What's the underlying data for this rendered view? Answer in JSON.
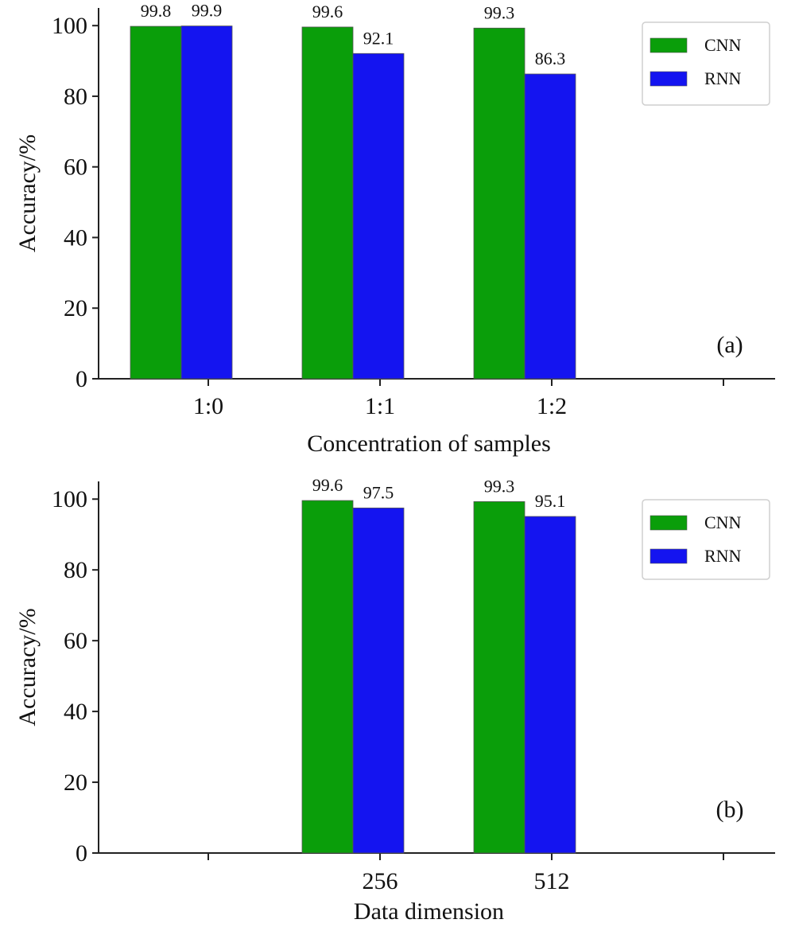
{
  "chart_data": [
    {
      "type": "bar",
      "panel_label": "(a)",
      "xlabel": "Concentration of samples",
      "ylabel": "Accuracy/%",
      "categories": [
        "1:0",
        "1:1",
        "1:2"
      ],
      "ylim": [
        0,
        105
      ],
      "yticks": [
        0,
        20,
        40,
        60,
        80,
        100
      ],
      "extra_x_ticks": 1,
      "series": [
        {
          "name": "CNN",
          "color": "#0a9e0a",
          "values": [
            99.8,
            99.6,
            99.3
          ],
          "labels": [
            "99.8",
            "99.6",
            "99.3"
          ]
        },
        {
          "name": "RNN",
          "color": "#1414f0",
          "values": [
            99.9,
            92.1,
            86.3
          ],
          "labels": [
            "99.9",
            "92.1",
            "86.3"
          ]
        }
      ],
      "legend_position": "top-right",
      "grid": false
    },
    {
      "type": "bar",
      "panel_label": "(b)",
      "xlabel": "Data dimension",
      "ylabel": "Accuracy/%",
      "categories": [
        "",
        "256",
        "512"
      ],
      "ylim": [
        0,
        105
      ],
      "yticks": [
        0,
        20,
        40,
        60,
        80,
        100
      ],
      "extra_x_ticks": 1,
      "series": [
        {
          "name": "CNN",
          "color": "#0a9e0a",
          "values": [
            null,
            99.6,
            99.3
          ],
          "labels": [
            "",
            "99.6",
            "99.3"
          ]
        },
        {
          "name": "RNN",
          "color": "#1414f0",
          "values": [
            null,
            97.5,
            95.1
          ],
          "labels": [
            "",
            "97.5",
            "95.1"
          ]
        }
      ],
      "legend_position": "top-right",
      "grid": false
    }
  ]
}
